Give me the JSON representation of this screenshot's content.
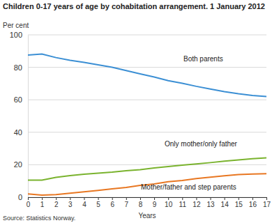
{
  "chart_data": {
    "type": "line",
    "title": "Children 0-17 years of age by cohabitation arrangement. 1 January 2012",
    "y_label": "Per cent",
    "x_label": "Years",
    "source": "Source: Statistics Norway.",
    "x": [
      0,
      1,
      2,
      3,
      4,
      5,
      6,
      7,
      8,
      9,
      10,
      11,
      12,
      13,
      14,
      15,
      16,
      17
    ],
    "xlim": [
      0,
      17
    ],
    "xticks": [
      0,
      1,
      2,
      3,
      4,
      5,
      6,
      7,
      8,
      9,
      10,
      11,
      12,
      13,
      14,
      15,
      16,
      17
    ],
    "ylim": [
      0,
      100
    ],
    "yticks": [
      0,
      20,
      40,
      60,
      80,
      100
    ],
    "grid": true,
    "series": [
      {
        "name": "Both parents",
        "color": "#3b8fd4",
        "values": [
          87.5,
          88.2,
          86,
          84.3,
          83,
          81.5,
          80,
          78,
          76,
          74,
          71.8,
          70.2,
          68.3,
          66.6,
          65,
          63.7,
          62.7,
          62
        ]
      },
      {
        "name": "Only mother/only father",
        "color": "#7ab32e",
        "values": [
          10.5,
          10.5,
          12.2,
          13.3,
          14.2,
          14.8,
          15.4,
          16.3,
          17,
          18,
          18.9,
          19.7,
          20.5,
          21.3,
          22.2,
          23,
          23.7,
          24.3
        ]
      },
      {
        "name": "Mother/father and step parents",
        "color": "#e87722",
        "values": [
          2,
          1.3,
          1.6,
          2.5,
          3.3,
          4.2,
          5.2,
          6,
          7.3,
          8.2,
          9.5,
          10.3,
          11.5,
          12.3,
          13.2,
          14,
          14.3,
          14.5
        ]
      }
    ]
  }
}
